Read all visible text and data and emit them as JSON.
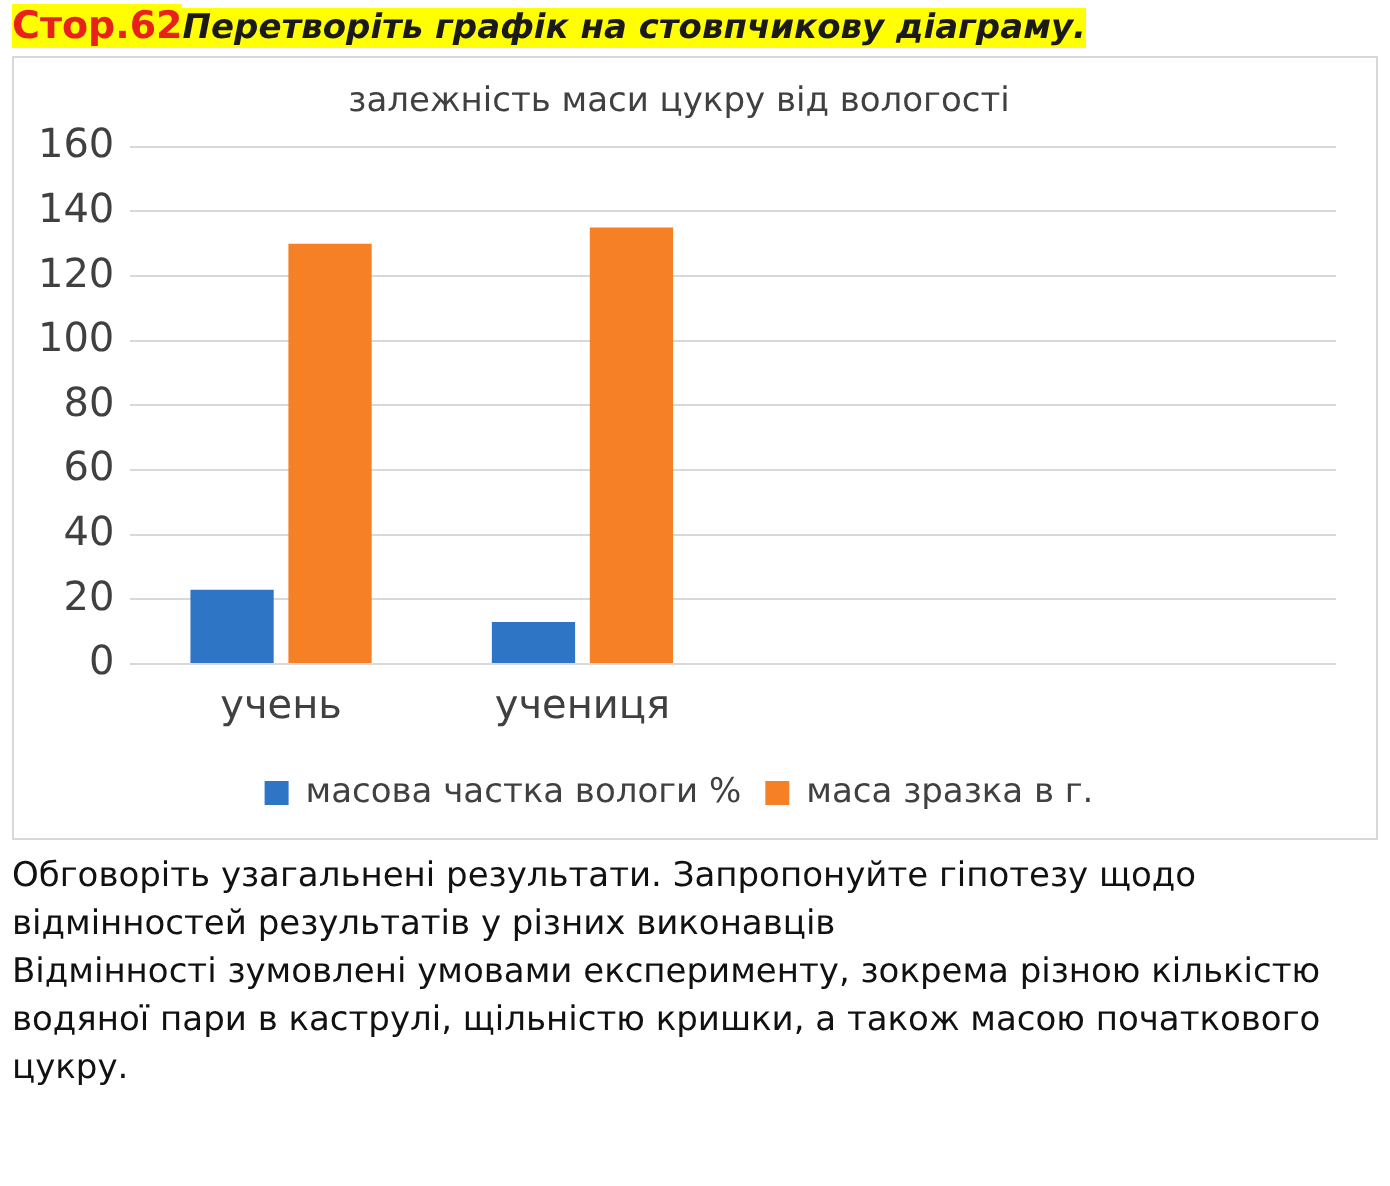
{
  "chart_data": {
    "type": "bar",
    "title": "залежність маси цукру від вологості",
    "categories": [
      "учень",
      "учениця",
      null,
      null
    ],
    "series": [
      {
        "name": "масова частка вологи %",
        "color": "#2e75c6",
        "values": [
          23,
          13,
          null,
          null
        ]
      },
      {
        "name": "маса зразка в г.",
        "color": "#f58025",
        "values": [
          130,
          135,
          null,
          null
        ]
      }
    ],
    "ylim": [
      0,
      160
    ],
    "yticks": [
      0,
      20,
      40,
      60,
      80,
      100,
      120,
      140,
      160
    ],
    "grid": "y",
    "legend": "bottom",
    "annotations": [
      "Стор.62",
      "Перетворіть графік на стовпчикову діаграму.",
      "Обговоріть узагальнені результати. Запропонуйте гіпотезу щодо відмінностей результатів у різних виконавців",
      "Відмінності зумовлені умовами експерименту, зокрема різною кількістю водяної пари в каструлі, щільністю кришки, а також масою початкового цукру."
    ]
  }
}
